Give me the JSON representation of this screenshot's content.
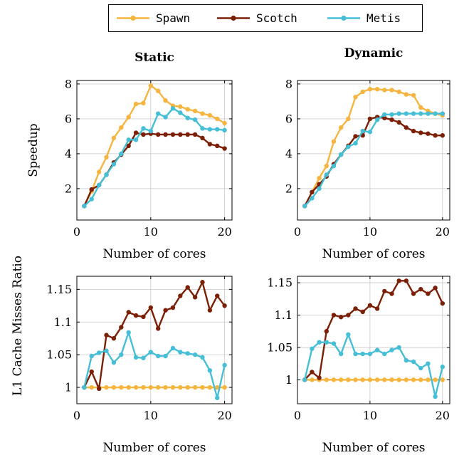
{
  "legend": {
    "entries": [
      {
        "name": "Spawn",
        "color": "#f5b53f"
      },
      {
        "name": "Scotch",
        "color": "#7b1f06"
      },
      {
        "name": "Metis",
        "color": "#46bfd6"
      }
    ]
  },
  "chart_data": [
    {
      "type": "line",
      "title": "Static",
      "xlabel": "Number of cores",
      "ylabel": "Speedup",
      "xlim": [
        0,
        21
      ],
      "ylim": [
        0.2,
        8.2
      ],
      "xticks": [
        0,
        10,
        20
      ],
      "yticks": [
        2,
        4,
        6,
        8
      ],
      "ytick_labels": [
        "2",
        "4",
        "6",
        "8"
      ],
      "grid": true,
      "x": [
        1,
        2,
        3,
        4,
        5,
        6,
        7,
        8,
        9,
        10,
        11,
        12,
        13,
        14,
        15,
        16,
        17,
        18,
        19,
        20
      ],
      "series": [
        {
          "name": "Spawn",
          "values": [
            1.0,
            1.85,
            2.95,
            3.8,
            4.9,
            5.5,
            6.1,
            6.85,
            6.9,
            7.9,
            7.6,
            7.05,
            6.75,
            6.7,
            6.55,
            6.45,
            6.3,
            6.2,
            6.0,
            5.75
          ]
        },
        {
          "name": "Scotch",
          "values": [
            1.0,
            1.95,
            2.2,
            2.8,
            3.5,
            3.95,
            4.45,
            5.2,
            5.1,
            5.15,
            5.1,
            5.1,
            5.1,
            5.1,
            5.1,
            5.1,
            4.9,
            4.55,
            4.45,
            4.3
          ]
        },
        {
          "name": "Metis",
          "values": [
            1.0,
            1.4,
            2.2,
            2.8,
            3.4,
            4.0,
            4.8,
            4.8,
            5.45,
            5.3,
            6.3,
            6.1,
            6.6,
            6.35,
            6.05,
            5.95,
            5.45,
            5.4,
            5.4,
            5.35
          ]
        }
      ]
    },
    {
      "type": "line",
      "title": "Dynamic",
      "xlabel": "Number of cores",
      "ylabel": "",
      "xlim": [
        0,
        21
      ],
      "ylim": [
        0.2,
        8.2
      ],
      "xticks": [
        0,
        10,
        20
      ],
      "yticks": [
        2,
        4,
        6,
        8
      ],
      "ytick_labels": [
        "2",
        "4",
        "6",
        "8"
      ],
      "grid": true,
      "x": [
        1,
        2,
        3,
        4,
        5,
        6,
        7,
        8,
        9,
        10,
        11,
        12,
        13,
        14,
        15,
        16,
        17,
        18,
        19,
        20
      ],
      "series": [
        {
          "name": "Spawn",
          "values": [
            1.0,
            1.8,
            2.6,
            3.3,
            4.7,
            5.5,
            6.0,
            7.25,
            7.55,
            7.7,
            7.7,
            7.65,
            7.65,
            7.55,
            7.4,
            7.35,
            6.65,
            6.45,
            6.3,
            6.2
          ]
        },
        {
          "name": "Scotch",
          "values": [
            1.0,
            1.8,
            2.25,
            2.7,
            3.4,
            3.95,
            4.45,
            5.0,
            5.05,
            6.0,
            6.1,
            6.05,
            5.95,
            5.8,
            5.5,
            5.3,
            5.2,
            5.15,
            5.05,
            5.05
          ]
        },
        {
          "name": "Metis",
          "values": [
            1.0,
            1.45,
            2.0,
            2.8,
            3.3,
            3.95,
            4.4,
            4.6,
            5.3,
            5.25,
            5.95,
            6.25,
            6.25,
            6.3,
            6.3,
            6.3,
            6.3,
            6.3,
            6.3,
            6.3
          ]
        }
      ]
    },
    {
      "type": "line",
      "title": "",
      "xlabel": "Number of cores",
      "ylabel": "L1 Cache Misses Ratio",
      "xlim": [
        0,
        21
      ],
      "ylim": [
        0.975,
        1.17
      ],
      "xticks": [
        0,
        10,
        20
      ],
      "yticks": [
        1,
        1.05,
        1.1,
        1.15
      ],
      "ytick_labels": [
        "1",
        "1.05",
        "1.1",
        "1.15"
      ],
      "grid": true,
      "x": [
        1,
        2,
        3,
        4,
        5,
        6,
        7,
        8,
        9,
        10,
        11,
        12,
        13,
        14,
        15,
        16,
        17,
        18,
        19,
        20
      ],
      "series": [
        {
          "name": "Spawn",
          "values": [
            1.0,
            1.0,
            1.0,
            1.0,
            1.0,
            1.0,
            1.0,
            1.0,
            1.0,
            1.0,
            1.0,
            1.0,
            1.0,
            1.0,
            1.0,
            1.0,
            1.0,
            1.0,
            1.0,
            1.0
          ]
        },
        {
          "name": "Scotch",
          "values": [
            1.0,
            1.024,
            0.998,
            1.08,
            1.075,
            1.092,
            1.115,
            1.11,
            1.108,
            1.122,
            1.09,
            1.118,
            1.122,
            1.14,
            1.153,
            1.138,
            1.161,
            1.118,
            1.14,
            1.125
          ]
        },
        {
          "name": "Metis",
          "values": [
            1.0,
            1.048,
            1.053,
            1.056,
            1.038,
            1.05,
            1.084,
            1.046,
            1.045,
            1.054,
            1.048,
            1.048,
            1.06,
            1.054,
            1.052,
            1.05,
            1.046,
            1.026,
            0.984,
            1.034
          ]
        }
      ]
    },
    {
      "type": "line",
      "title": "",
      "xlabel": "Number of cores",
      "ylabel": "",
      "xlim": [
        0,
        21
      ],
      "ylim": [
        0.963,
        1.16
      ],
      "xticks": [
        0,
        10,
        20
      ],
      "yticks": [
        1,
        1.05,
        1.1,
        1.15
      ],
      "ytick_labels": [
        "1",
        "1.05",
        "1.1",
        "1.15"
      ],
      "grid": true,
      "x": [
        1,
        2,
        3,
        4,
        5,
        6,
        7,
        8,
        9,
        10,
        11,
        12,
        13,
        14,
        15,
        16,
        17,
        18,
        19,
        20
      ],
      "series": [
        {
          "name": "Spawn",
          "values": [
            1.0,
            1.0,
            1.0,
            1.0,
            1.0,
            1.0,
            1.0,
            1.0,
            1.0,
            1.0,
            1.0,
            1.0,
            1.0,
            1.0,
            1.0,
            1.0,
            1.0,
            1.0,
            1.0,
            1.0
          ]
        },
        {
          "name": "Scotch",
          "values": [
            1.0,
            1.012,
            1.003,
            1.075,
            1.1,
            1.097,
            1.1,
            1.11,
            1.105,
            1.115,
            1.11,
            1.137,
            1.133,
            1.153,
            1.153,
            1.133,
            1.14,
            1.133,
            1.142,
            1.118
          ]
        },
        {
          "name": "Metis",
          "values": [
            1.0,
            1.048,
            1.058,
            1.058,
            1.056,
            1.04,
            1.07,
            1.04,
            1.04,
            1.04,
            1.046,
            1.04,
            1.046,
            1.05,
            1.03,
            1.028,
            1.018,
            1.025,
            0.974,
            1.02
          ]
        }
      ]
    }
  ]
}
